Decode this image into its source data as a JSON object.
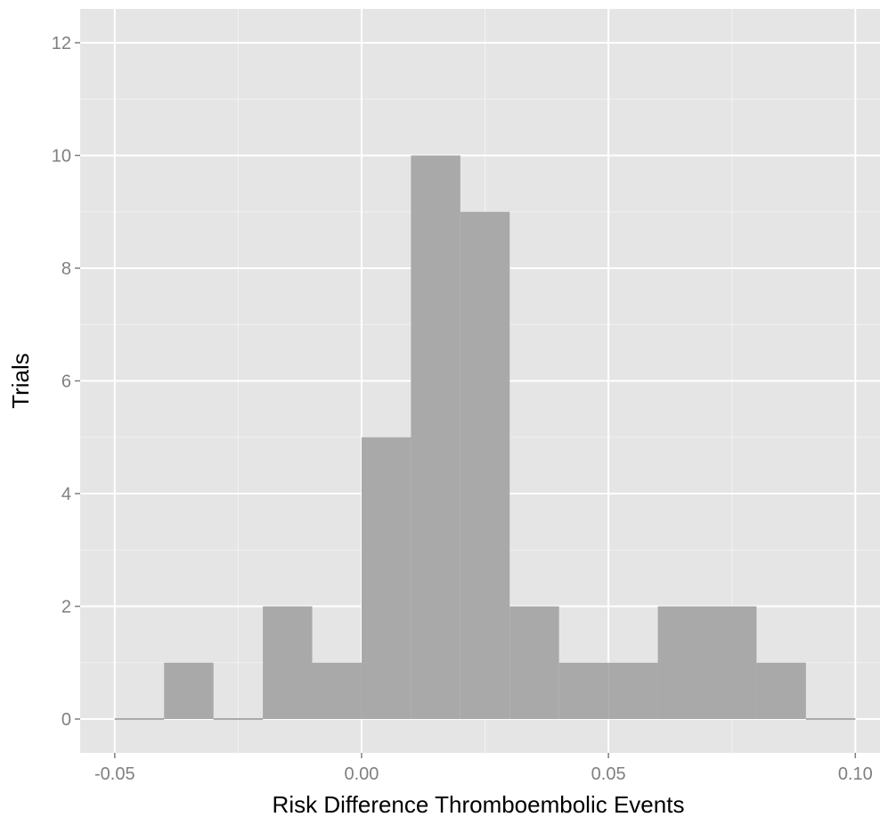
{
  "chart_data": {
    "type": "bar",
    "subtype": "histogram",
    "title": "",
    "xlabel": "Risk Difference Thromboembolic Events",
    "ylabel": "Trials",
    "xlim": [
      -0.057,
      0.105
    ],
    "ylim": [
      -0.6,
      12.6
    ],
    "x_ticks": [
      -0.05,
      0.0,
      0.05,
      0.1
    ],
    "x_tick_labels": [
      "-0.05",
      "0.00",
      "0.05",
      "0.10"
    ],
    "y_ticks": [
      0,
      2,
      4,
      6,
      8,
      10,
      12
    ],
    "y_tick_labels": [
      "0",
      "2",
      "4",
      "6",
      "8",
      "10",
      "12"
    ],
    "bins": [
      {
        "start": -0.05,
        "end": -0.04,
        "count": 0
      },
      {
        "start": -0.04,
        "end": -0.03,
        "count": 1
      },
      {
        "start": -0.03,
        "end": -0.02,
        "count": 0
      },
      {
        "start": -0.02,
        "end": -0.01,
        "count": 2
      },
      {
        "start": -0.01,
        "end": 0.0,
        "count": 1
      },
      {
        "start": 0.0,
        "end": 0.01,
        "count": 5
      },
      {
        "start": 0.01,
        "end": 0.02,
        "count": 10
      },
      {
        "start": 0.02,
        "end": 0.03,
        "count": 9
      },
      {
        "start": 0.03,
        "end": 0.04,
        "count": 2
      },
      {
        "start": 0.04,
        "end": 0.05,
        "count": 1
      },
      {
        "start": 0.05,
        "end": 0.06,
        "count": 1
      },
      {
        "start": 0.06,
        "end": 0.07,
        "count": 2
      },
      {
        "start": 0.07,
        "end": 0.08,
        "count": 2
      },
      {
        "start": 0.08,
        "end": 0.09,
        "count": 1
      },
      {
        "start": 0.09,
        "end": 0.1,
        "count": 0
      }
    ],
    "grid": true,
    "colors": {
      "panel_background": "#e5e5e5",
      "grid_major": "#ffffff",
      "grid_minor": "#f2f2f2",
      "bar_fill": "#a9a9a9",
      "tick_label": "#7f7f7f",
      "axis_title": "#000000"
    }
  }
}
